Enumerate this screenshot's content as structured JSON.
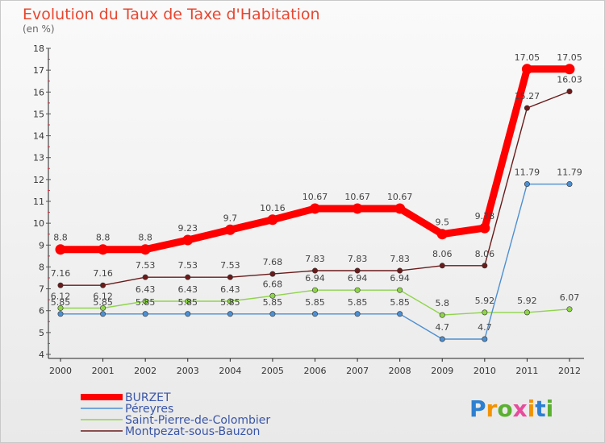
{
  "chart_data": {
    "type": "line",
    "title": "Evolution du Taux de Taxe d'Habitation",
    "subtitle": "(en %)",
    "x": [
      "2000",
      "2001",
      "2002",
      "2003",
      "2004",
      "2005",
      "2006",
      "2007",
      "2008",
      "2009",
      "2010",
      "2011",
      "2012"
    ],
    "ylim": [
      4,
      18
    ],
    "yticks": [
      4,
      5,
      6,
      7,
      8,
      9,
      10,
      11,
      12,
      13,
      14,
      15,
      16,
      17,
      18
    ],
    "grid": false,
    "legend_position": "bottom-left",
    "series": [
      {
        "name": "BURZET",
        "color": "#ff0000",
        "values": [
          8.8,
          8.8,
          8.8,
          9.23,
          9.7,
          10.16,
          10.67,
          10.67,
          10.67,
          9.5,
          9.78,
          17.05,
          17.05
        ],
        "labels": [
          "8.8",
          "8.8",
          "8.8",
          "9.23",
          "9.7",
          "10.16",
          "10.67",
          "10.67",
          "10.67",
          "9.5",
          "9.78",
          "17.05",
          "17.05"
        ]
      },
      {
        "name": "Péreyres",
        "color": "#4d8fd1",
        "values": [
          5.85,
          5.85,
          5.85,
          5.85,
          5.85,
          5.85,
          5.85,
          5.85,
          5.85,
          4.7,
          4.7,
          11.79,
          11.79
        ],
        "labels": [
          "5.85",
          "5.85",
          "5.85",
          "5.85",
          "5.85",
          "5.85",
          "5.85",
          "5.85",
          "5.85",
          "4.7",
          "4.7",
          "11.79",
          "11.79"
        ]
      },
      {
        "name": "Saint-Pierre-de-Colombier",
        "color": "#8fd44a",
        "values": [
          6.12,
          6.12,
          6.43,
          6.43,
          6.43,
          6.68,
          6.94,
          6.94,
          6.94,
          5.8,
          5.92,
          5.92,
          6.07
        ],
        "labels": [
          "6.12",
          "6.12",
          "6.43",
          "6.43",
          "6.43",
          "6.68",
          "6.94",
          "6.94",
          "6.94",
          "5.8",
          "5.92",
          "5.92",
          "6.07"
        ]
      },
      {
        "name": "Montpezat-sous-Bauzon",
        "color": "#6b1a1a",
        "values": [
          7.16,
          7.16,
          7.53,
          7.53,
          7.53,
          7.68,
          7.83,
          7.83,
          7.83,
          8.06,
          8.06,
          15.27,
          16.03
        ],
        "labels": [
          "7.16",
          "7.16",
          "7.53",
          "7.53",
          "7.53",
          "7.68",
          "7.83",
          "7.83",
          "7.83",
          "8.06",
          "8.06",
          "15.27",
          "16.03"
        ]
      }
    ]
  },
  "brand": {
    "letters": [
      "P",
      "r",
      "o",
      "x",
      "i",
      "t",
      "i"
    ],
    "colors": [
      "#2d7fd1",
      "#f39200",
      "#5ab031",
      "#e74c9c",
      "#f39200",
      "#2d7fd1",
      "#5ab031"
    ]
  }
}
